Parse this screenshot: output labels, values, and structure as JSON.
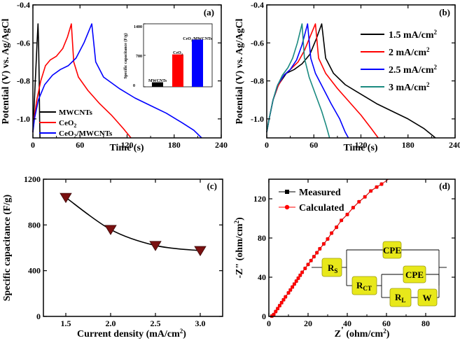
{
  "chart_data": [
    {
      "id": "a",
      "type": "line",
      "panel_label": "(a)",
      "xlabel": "Time (s)",
      "ylabel": "Potential (V) vs. Ag/AgCl",
      "xlim": [
        0,
        240
      ],
      "ylim": [
        -1.1,
        -0.4
      ],
      "xticks": [
        "0",
        "60",
        "120",
        "180",
        "240"
      ],
      "yticks": [
        "-1.0",
        "-0.8",
        "-0.6",
        "-0.4"
      ],
      "series": [
        {
          "name": "MWCNTs",
          "color": "#000000",
          "points": [
            [
              0,
              -1.07
            ],
            [
              0.8,
              -1.0
            ],
            [
              2,
              -0.9
            ],
            [
              3,
              -0.8
            ],
            [
              4.2,
              -0.7
            ],
            [
              5.3,
              -0.6
            ],
            [
              6.5,
              -0.5
            ],
            [
              7.2,
              -0.6
            ],
            [
              8,
              -0.8
            ],
            [
              8.6,
              -1.0
            ],
            [
              9,
              -1.1
            ]
          ]
        },
        {
          "name": "CeO2",
          "color": "#ff0000",
          "points": [
            [
              0,
              -1.07
            ],
            [
              1.5,
              -1.0
            ],
            [
              5,
              -0.9
            ],
            [
              10,
              -0.8
            ],
            [
              16,
              -0.72
            ],
            [
              22,
              -0.69
            ],
            [
              30,
              -0.67
            ],
            [
              38,
              -0.63
            ],
            [
              44,
              -0.57
            ],
            [
              49,
              -0.5
            ],
            [
              52,
              -0.7
            ],
            [
              58,
              -0.78
            ],
            [
              70,
              -0.85
            ],
            [
              85,
              -0.92
            ],
            [
              100,
              -0.98
            ],
            [
              115,
              -1.05
            ],
            [
              125,
              -1.1
            ]
          ]
        },
        {
          "name": "CeO2/MWCNTs",
          "color": "#0000ff",
          "points": [
            [
              0,
              -1.07
            ],
            [
              2,
              -1.0
            ],
            [
              7,
              -0.9
            ],
            [
              15,
              -0.82
            ],
            [
              25,
              -0.77
            ],
            [
              35,
              -0.74
            ],
            [
              45,
              -0.72
            ],
            [
              55,
              -0.68
            ],
            [
              65,
              -0.6
            ],
            [
              75,
              -0.5
            ],
            [
              80,
              -0.7
            ],
            [
              90,
              -0.78
            ],
            [
              110,
              -0.84
            ],
            [
              130,
              -0.89
            ],
            [
              150,
              -0.93
            ],
            [
              170,
              -0.97
            ],
            [
              190,
              -1.02
            ],
            [
              205,
              -1.06
            ],
            [
              215,
              -1.1
            ]
          ]
        }
      ],
      "inset": {
        "type": "bar",
        "ylabel": "Specific capacitance (F/g)",
        "ylim": [
          0,
          1400
        ],
        "yticks": [
          "0",
          "700",
          "1400"
        ],
        "categories": [
          "MWCNTs",
          "CeO2",
          "CeO2/MWCNTs"
        ],
        "values": [
          100,
          720,
          1050
        ],
        "colors": [
          "#000000",
          "#ff0000",
          "#0000ff"
        ]
      }
    },
    {
      "id": "b",
      "type": "line",
      "panel_label": "(b)",
      "xlabel": "Time (s)",
      "ylabel": "Potential (V) vs. Ag/AgCl",
      "xlim": [
        0,
        240
      ],
      "ylim": [
        -1.1,
        -0.4
      ],
      "xticks": [
        "0",
        "60",
        "120",
        "180",
        "240"
      ],
      "yticks": [
        "-1.0",
        "-0.8",
        "-0.6",
        "-0.4"
      ],
      "series": [
        {
          "name": "1.5 mA/cm2",
          "color": "#000000",
          "points": [
            [
              0,
              -1.07
            ],
            [
              3,
              -1.0
            ],
            [
              8,
              -0.9
            ],
            [
              15,
              -0.82
            ],
            [
              25,
              -0.76
            ],
            [
              35,
              -0.74
            ],
            [
              45,
              -0.71
            ],
            [
              55,
              -0.66
            ],
            [
              63,
              -0.58
            ],
            [
              70,
              -0.5
            ],
            [
              75,
              -0.68
            ],
            [
              85,
              -0.76
            ],
            [
              100,
              -0.82
            ],
            [
              120,
              -0.87
            ],
            [
              140,
              -0.92
            ],
            [
              160,
              -0.96
            ],
            [
              180,
              -1.0
            ],
            [
              200,
              -1.05
            ],
            [
              215,
              -1.1
            ]
          ]
        },
        {
          "name": "2 mA/cm2",
          "color": "#ff0000",
          "points": [
            [
              0,
              -1.07
            ],
            [
              3,
              -1.0
            ],
            [
              8,
              -0.9
            ],
            [
              14,
              -0.83
            ],
            [
              22,
              -0.77
            ],
            [
              30,
              -0.74
            ],
            [
              40,
              -0.7
            ],
            [
              48,
              -0.64
            ],
            [
              55,
              -0.57
            ],
            [
              62,
              -0.5
            ],
            [
              66,
              -0.68
            ],
            [
              75,
              -0.76
            ],
            [
              90,
              -0.84
            ],
            [
              105,
              -0.91
            ],
            [
              120,
              -0.98
            ],
            [
              133,
              -1.05
            ],
            [
              142,
              -1.1
            ]
          ]
        },
        {
          "name": "2.5 mA/cm2",
          "color": "#0000ff",
          "points": [
            [
              0,
              -1.07
            ],
            [
              3,
              -1.0
            ],
            [
              8,
              -0.9
            ],
            [
              14,
              -0.82
            ],
            [
              22,
              -0.77
            ],
            [
              30,
              -0.74
            ],
            [
              38,
              -0.69
            ],
            [
              45,
              -0.61
            ],
            [
              52,
              -0.5
            ],
            [
              56,
              -0.68
            ],
            [
              62,
              -0.76
            ],
            [
              72,
              -0.84
            ],
            [
              82,
              -0.92
            ],
            [
              93,
              -1.0
            ],
            [
              100,
              -1.07
            ],
            [
              104,
              -1.1
            ]
          ]
        },
        {
          "name": "3 mA/cm2",
          "color": "#1a8a80",
          "points": [
            [
              0,
              -1.07
            ],
            [
              3,
              -1.0
            ],
            [
              8,
              -0.9
            ],
            [
              13,
              -0.83
            ],
            [
              20,
              -0.77
            ],
            [
              27,
              -0.73
            ],
            [
              33,
              -0.68
            ],
            [
              39,
              -0.6
            ],
            [
              45,
              -0.5
            ],
            [
              48,
              -0.68
            ],
            [
              54,
              -0.78
            ],
            [
              62,
              -0.87
            ],
            [
              70,
              -0.96
            ],
            [
              76,
              -1.04
            ],
            [
              80,
              -1.1
            ]
          ]
        }
      ]
    },
    {
      "id": "c",
      "type": "line",
      "panel_label": "(c)",
      "xlabel": "Current density (mA/cm2)",
      "ylabel": "Specific capacitance (F/g)",
      "xlim": [
        1.25,
        3.25
      ],
      "ylim": [
        0,
        1200
      ],
      "xticks": [
        "1.5",
        "2.0",
        "2.5",
        "3.0"
      ],
      "yticks": [
        "0",
        "400",
        "800",
        "1200"
      ],
      "x": [
        1.5,
        2.0,
        2.5,
        3.0
      ],
      "values": [
        1040,
        760,
        620,
        575
      ],
      "marker_color": "#7a1010"
    },
    {
      "id": "d",
      "type": "scatter",
      "panel_label": "(d)",
      "xlabel": "Z' (ohm/cm2)",
      "ylabel": "-Z\" (ohm/cm2)",
      "xlim": [
        0,
        95
      ],
      "ylim": [
        0,
        140
      ],
      "xticks": [
        "0",
        "20",
        "40",
        "60",
        "80"
      ],
      "yticks": [
        "0",
        "40",
        "80",
        "120"
      ],
      "series": [
        {
          "name": "Measured",
          "color": "#000000",
          "marker": "square",
          "points": [
            [
              1.5,
              0.3
            ],
            [
              2.5,
              2
            ],
            [
              3.5,
              5
            ],
            [
              4.5,
              8
            ],
            [
              5.5,
              11
            ],
            [
              6.5,
              14
            ],
            [
              7.5,
              17
            ],
            [
              8.5,
              20
            ],
            [
              10,
              24
            ],
            [
              11,
              27
            ],
            [
              12,
              30
            ],
            [
              13,
              33
            ],
            [
              14,
              36
            ],
            [
              15,
              39
            ],
            [
              16,
              42
            ],
            [
              17,
              45
            ],
            [
              18.5,
              49
            ],
            [
              20,
              53
            ],
            [
              21.5,
              57
            ],
            [
              23,
              61
            ],
            [
              24.5,
              65
            ],
            [
              26,
              69
            ],
            [
              28,
              74
            ],
            [
              30,
              79
            ],
            [
              32,
              85
            ],
            [
              34.5,
              91
            ],
            [
              37,
              98
            ],
            [
              40,
              104
            ],
            [
              43,
              111
            ],
            [
              46,
              117
            ],
            [
              49,
              122
            ],
            [
              52,
              128
            ],
            [
              55,
              132
            ],
            [
              57.5,
              135
            ]
          ]
        },
        {
          "name": "Calculated",
          "color": "#ff0000",
          "marker": "circle",
          "points": [
            [
              1.5,
              0.3
            ],
            [
              2.5,
              2
            ],
            [
              3.5,
              5
            ],
            [
              4.5,
              8
            ],
            [
              5.5,
              11
            ],
            [
              6.5,
              14
            ],
            [
              7.5,
              17
            ],
            [
              8.5,
              20
            ],
            [
              10,
              24
            ],
            [
              11,
              27
            ],
            [
              12,
              30
            ],
            [
              13,
              33
            ],
            [
              14,
              36
            ],
            [
              15,
              39
            ],
            [
              16,
              42
            ],
            [
              17,
              45
            ],
            [
              18.5,
              49
            ],
            [
              20,
              53
            ],
            [
              21.5,
              57
            ],
            [
              23,
              61
            ],
            [
              24.5,
              65
            ],
            [
              26,
              69
            ],
            [
              28,
              74
            ],
            [
              30,
              79
            ],
            [
              32,
              85
            ],
            [
              34.5,
              91
            ],
            [
              37,
              98
            ],
            [
              40,
              104
            ],
            [
              43,
              111
            ],
            [
              46,
              117
            ],
            [
              49,
              122
            ],
            [
              52,
              128
            ],
            [
              55,
              132
            ],
            [
              57.5,
              135
            ]
          ]
        }
      ],
      "circuit": {
        "labels": [
          "RS",
          "CPE",
          "RCT",
          "CPE",
          "RL",
          "W"
        ],
        "box_color": "#e8e81a"
      }
    }
  ],
  "labels": {
    "mwcnts": "MWCNTs",
    "ceo2_main": "CeO",
    "ceo2_sub": "2",
    "ceomw_main": "CeO",
    "ceomw_sub": "2",
    "ceomw_rest": "/MWCNTs",
    "inset_ylabel": "Specific capacitance (F/g)",
    "inset_mw": "MWCNTs",
    "inset_ceo2": "CeO",
    "inset_sub": "2",
    "inset_rest": "/MWCNTs",
    "b_leg1": "1.5 mA/cm",
    "b_leg2": "2 mA/cm",
    "b_leg3": "2.5 mA/cm",
    "b_leg4": "3 mA/cm",
    "sup2": "2",
    "c_xlabel": "Current density (mA/cm",
    "c_xlabel_end": ")",
    "d_xlabel_a": "Z",
    "d_xlabel_b": "'",
    "d_xlabel_c": " (ohm/cm",
    "d_xlabel_d": ")",
    "d_ylabel_a": "-Z\" (ohm/cm",
    "d_ylabel_b": ")",
    "measured": "Measured",
    "calculated": "Calculated",
    "r": "R",
    "s": "S",
    "ct": "CT",
    "l": "L",
    "cpe": "CPE",
    "w": "W"
  }
}
